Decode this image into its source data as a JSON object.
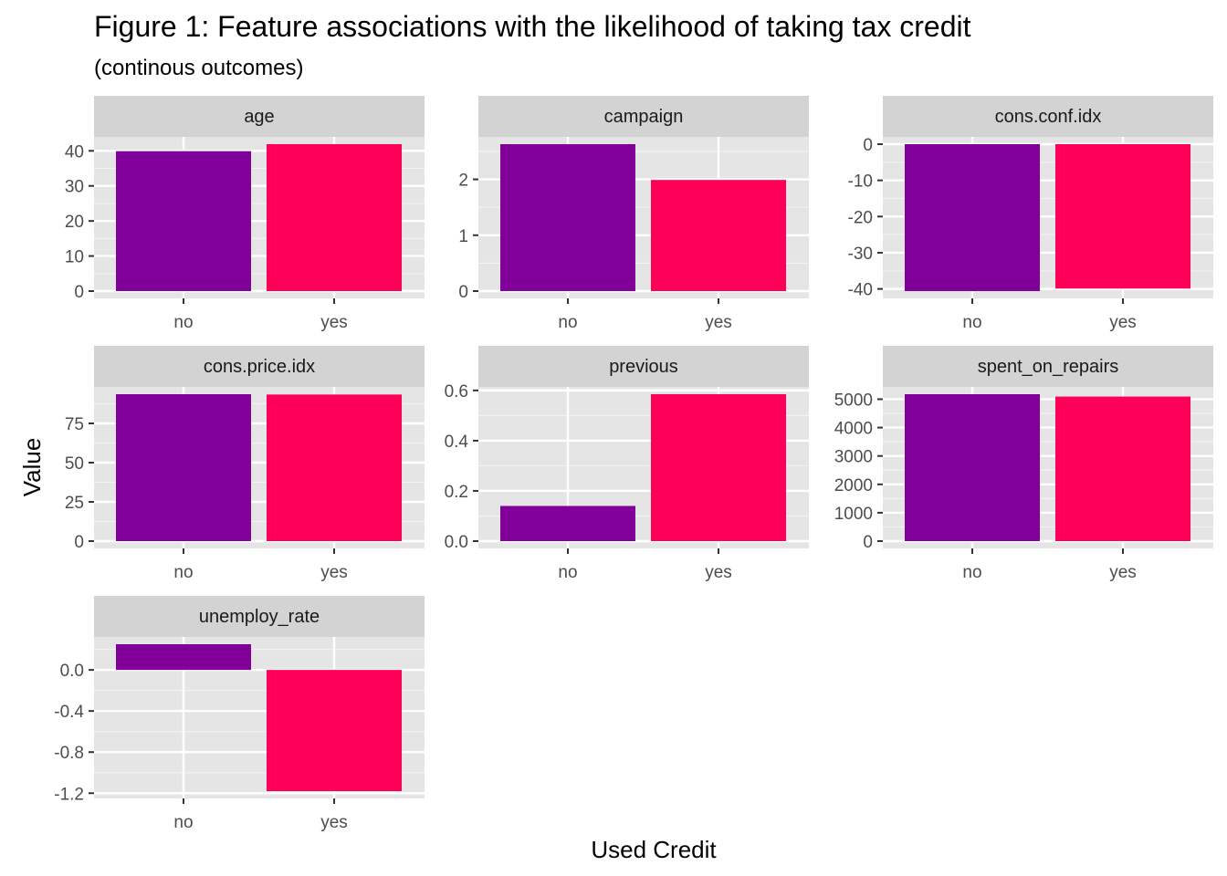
{
  "chart_data": {
    "type": "bar",
    "title": "Figure 1: Feature associations with the likelihood of taking tax credit",
    "subtitle": "(continous outcomes)",
    "xlabel": "Used Credit",
    "ylabel": "Value",
    "categories": [
      "no",
      "yes"
    ],
    "colors": {
      "no": "#800099",
      "yes": "#FF0059"
    },
    "panel_background": "#E5E5E5",
    "strip_background": "#D3D3D3",
    "grid": true,
    "legend": "none",
    "facets": [
      {
        "name": "age",
        "values": [
          39.9,
          41.9
        ],
        "ylim": [
          0,
          41.9
        ],
        "yticks": [
          0,
          10,
          20,
          30,
          40
        ],
        "ytick_labels": [
          "0",
          "10",
          "20",
          "30",
          "40"
        ]
      },
      {
        "name": "campaign",
        "values": [
          2.63,
          1.99
        ],
        "ylim": [
          0,
          2.63
        ],
        "yticks": [
          0,
          1,
          2
        ],
        "ytick_labels": [
          "0",
          "1",
          "2"
        ]
      },
      {
        "name": "cons.conf.idx",
        "values": [
          -40.6,
          -39.9
        ],
        "ylim": [
          -40.6,
          0
        ],
        "yticks": [
          0,
          -10,
          -20,
          -30,
          -40
        ],
        "ytick_labels": [
          "0",
          "-10",
          "-20",
          "-30",
          "-40"
        ]
      },
      {
        "name": "cons.price.idx",
        "values": [
          93.6,
          93.4
        ],
        "ylim": [
          0,
          93.6
        ],
        "yticks": [
          0,
          25,
          50,
          75
        ],
        "ytick_labels": [
          "0",
          "25",
          "50",
          "75"
        ]
      },
      {
        "name": "previous",
        "values": [
          0.14,
          0.585
        ],
        "ylim": [
          0,
          0.585
        ],
        "yticks": [
          0.0,
          0.2,
          0.4,
          0.6
        ],
        "ytick_labels": [
          "0.0",
          "0.2",
          "0.4",
          "0.6"
        ]
      },
      {
        "name": "spent_on_repairs",
        "values": [
          5176,
          5093
        ],
        "ylim": [
          0,
          5176
        ],
        "yticks": [
          0,
          1000,
          2000,
          3000,
          4000,
          5000
        ],
        "ytick_labels": [
          "0",
          "1000",
          "2000",
          "3000",
          "4000",
          "5000"
        ]
      },
      {
        "name": "unemploy_rate",
        "values": [
          0.25,
          -1.18
        ],
        "ylim": [
          -1.18,
          0.25
        ],
        "yticks": [
          0.0,
          -0.4,
          -0.8,
          -1.2
        ],
        "ytick_labels": [
          "0.0",
          "-0.4",
          "-0.8",
          "-1.2"
        ]
      }
    ]
  }
}
